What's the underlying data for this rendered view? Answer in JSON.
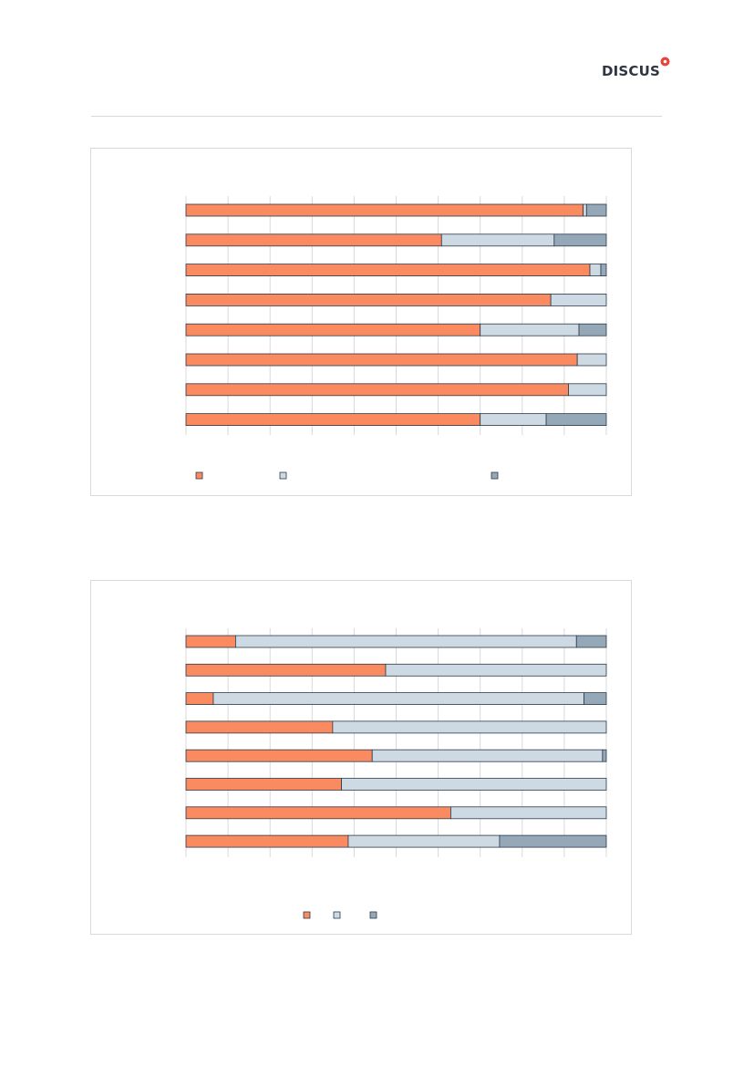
{
  "brand": {
    "logo_text": "DISCUS",
    "accent_color": "#e8443a"
  },
  "colors": {
    "series1": "#fa8a5f",
    "series2": "#cddae4",
    "series3": "#94a8b8",
    "bar_stroke": "#2b3a4a",
    "grid": "#d9d9d9"
  },
  "chart_data": [
    {
      "type": "bar",
      "orientation": "horizontal",
      "stacked": true,
      "percent": true,
      "categories": [
        "",
        "",
        "",
        "",
        "",
        "",
        "",
        ""
      ],
      "series": [
        {
          "values": [
            94.5,
            60.8,
            96.1,
            86.8,
            70.0,
            93.1,
            91.0,
            70.0
          ]
        },
        {
          "values": [
            0.8,
            26.8,
            2.6,
            13.2,
            23.5,
            6.9,
            9.0,
            15.7
          ]
        },
        {
          "values": [
            4.7,
            12.4,
            1.3,
            0.0,
            6.5,
            0.0,
            0.0,
            14.3
          ]
        }
      ],
      "xlim": [
        0,
        100
      ],
      "grid": true,
      "legend_position": "bottom"
    },
    {
      "type": "bar",
      "orientation": "horizontal",
      "stacked": true,
      "percent": true,
      "categories": [
        "",
        "",
        "",
        "",
        "",
        "",
        "",
        ""
      ],
      "series": [
        {
          "values": [
            11.8,
            47.5,
            6.5,
            34.9,
            44.3,
            37.0,
            63.0,
            38.6
          ]
        },
        {
          "values": [
            81.1,
            52.5,
            88.2,
            65.1,
            54.8,
            63.0,
            37.0,
            36.0
          ]
        },
        {
          "values": [
            7.1,
            0.0,
            5.3,
            0.0,
            0.9,
            0.0,
            0.0,
            25.4
          ]
        }
      ],
      "xlim": [
        0,
        100
      ],
      "grid": true,
      "legend_position": "bottom"
    }
  ]
}
